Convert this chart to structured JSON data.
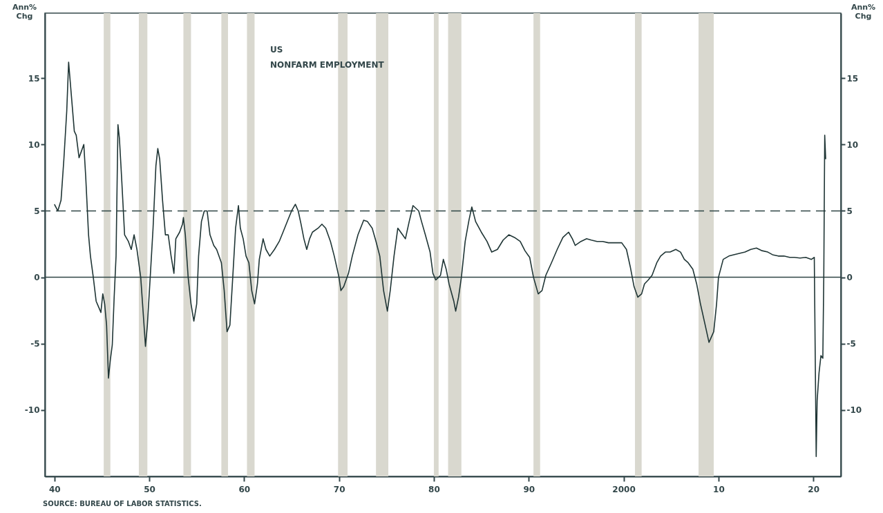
{
  "chart_data": {
    "type": "line",
    "ylabel": "Ann% Chg",
    "y2label": "Ann% Chg",
    "annotations": [
      "US\nNONFARM EMPLOYMENT",
      "SOURCE: BUREAU OF LABOR STATISTICS."
    ],
    "xlim": [
      1939,
      2022.9
    ],
    "xticks": [
      {
        "value": 1940,
        "label": "40"
      },
      {
        "value": 1950,
        "label": "50"
      },
      {
        "value": 1960,
        "label": "60"
      },
      {
        "value": 1970,
        "label": "70"
      },
      {
        "value": 1980,
        "label": "80"
      },
      {
        "value": 1990,
        "label": "90"
      },
      2000,
      {
        "value": 2010,
        "label": "10"
      },
      {
        "value": 2020,
        "label": "20"
      }
    ],
    "ylim": [
      -15,
      19.9
    ],
    "yticks": [
      -10,
      -5,
      0,
      5,
      10,
      15
    ],
    "y2lim": [
      -15,
      19.9
    ],
    "y2ticks": [
      -10,
      -5,
      0,
      5,
      10,
      15
    ],
    "grid": false,
    "marker": "none",
    "line_style": "solid",
    "ref_lines": [
      {
        "axis": "y",
        "value": 0,
        "color": "#2e4444",
        "line_style": "solid"
      },
      {
        "axis": "y",
        "value": 5,
        "color": "#2e4444",
        "line_style": "dashed"
      }
    ],
    "bands": [
      {
        "axis": "x",
        "from": 1945.2,
        "to": 1945.9,
        "color": "#d9d8cf"
      },
      {
        "axis": "x",
        "from": 1948.9,
        "to": 1949.8,
        "color": "#d9d8cf"
      },
      {
        "axis": "x",
        "from": 1953.6,
        "to": 1954.4,
        "color": "#d9d8cf"
      },
      {
        "axis": "x",
        "from": 1957.6,
        "to": 1958.3,
        "color": "#d9d8cf"
      },
      {
        "axis": "x",
        "from": 1960.3,
        "to": 1961.1,
        "color": "#d9d8cf"
      },
      {
        "axis": "x",
        "from": 1969.9,
        "to": 1970.9,
        "color": "#d9d8cf"
      },
      {
        "axis": "x",
        "from": 1973.9,
        "to": 1975.2,
        "color": "#d9d8cf"
      },
      {
        "axis": "x",
        "from": 1980.0,
        "to": 1980.5,
        "color": "#d9d8cf"
      },
      {
        "axis": "x",
        "from": 1981.5,
        "to": 1982.9,
        "color": "#d9d8cf"
      },
      {
        "axis": "x",
        "from": 1990.5,
        "to": 1991.2,
        "color": "#d9d8cf"
      },
      {
        "axis": "x",
        "from": 2001.2,
        "to": 2001.9,
        "color": "#d9d8cf"
      },
      {
        "axis": "x",
        "from": 2007.9,
        "to": 2009.5,
        "color": "#d9d8cf"
      }
    ],
    "series": [
      {
        "color": "#1f3535",
        "x": [
          1940,
          1940.36,
          1940.7,
          1941.0,
          1941.3,
          1941.5,
          1941.8,
          1942.1,
          1942.3,
          1942.6,
          1942.8,
          1943.1,
          1943.3,
          1943.6,
          1943.8,
          1944.1,
          1944.4,
          1944.7,
          1944.9,
          1945.1,
          1945.3,
          1945.5,
          1945.7,
          1945.9,
          1946.1,
          1946.3,
          1946.5,
          1946.7,
          1946.85,
          1947.0,
          1947.1,
          1947.4,
          1947.8,
          1948.1,
          1948.4,
          1948.7,
          1949.1,
          1949.4,
          1949.6,
          1949.8,
          1950.1,
          1950.4,
          1950.7,
          1950.9,
          1951.1,
          1951.4,
          1951.7,
          1952.0,
          1952.3,
          1952.6,
          1952.8,
          1953.2,
          1953.5,
          1953.6,
          1953.8,
          1954.1,
          1954.4,
          1954.7,
          1955.0,
          1955.2,
          1955.5,
          1955.8,
          1956.1,
          1956.4,
          1956.8,
          1957.1,
          1957.6,
          1957.9,
          1958.2,
          1958.5,
          1958.8,
          1959.1,
          1959.4,
          1959.6,
          1959.9,
          1960.2,
          1960.5,
          1960.8,
          1961.1,
          1961.4,
          1961.6,
          1962.0,
          1962.3,
          1962.7,
          1963.2,
          1963.7,
          1964.1,
          1964.6,
          1965.0,
          1965.4,
          1965.7,
          1966.0,
          1966.3,
          1966.6,
          1966.9,
          1967.2,
          1967.8,
          1968.2,
          1968.6,
          1969.1,
          1969.5,
          1970.0,
          1970.2,
          1970.5,
          1971.0,
          1971.4,
          1972.0,
          1972.6,
          1973.0,
          1973.5,
          1973.9,
          1974.3,
          1974.7,
          1975.1,
          1975.4,
          1975.8,
          1976.2,
          1976.7,
          1977.0,
          1977.4,
          1977.8,
          1978.4,
          1978.7,
          1979.1,
          1979.6,
          1979.9,
          1980.2,
          1980.5,
          1980.7,
          1981.0,
          1981.3,
          1981.6,
          1982.1,
          1982.3,
          1982.6,
          1982.9,
          1983.3,
          1983.7,
          1984.0,
          1984.4,
          1985.0,
          1985.6,
          1986.1,
          1986.7,
          1987.3,
          1987.9,
          1988.5,
          1989.1,
          1989.6,
          1990.1,
          1990.5,
          1991.0,
          1991.4,
          1991.8,
          1992.4,
          1993.0,
          1993.6,
          1994.2,
          1994.6,
          1994.9,
          1995.5,
          1996.1,
          1996.6,
          1997.2,
          1997.8,
          1998.4,
          1999.1,
          1999.8,
          2000.3,
          2000.7,
          2001.1,
          2001.5,
          2001.9,
          2002.2,
          2002.6,
          2003.0,
          2003.5,
          2003.9,
          2004.4,
          2004.9,
          2005.5,
          2006.0,
          2006.4,
          2006.8,
          2007.3,
          2007.7,
          2008.1,
          2008.6,
          2009.0,
          2009.5,
          2009.8,
          2010.0,
          2010.5,
          2011.1,
          2011.6,
          2012.2,
          2012.8,
          2013.4,
          2014.0,
          2014.6,
          2015.2,
          2015.7,
          2016.3,
          2016.9,
          2017.5,
          2018.0,
          2018.6,
          2019.2,
          2019.8,
          2020.1,
          2020.3,
          2020.4,
          2020.6,
          2020.8,
          2021.0,
          2021.1,
          2021.2,
          2021.3
        ],
        "values": [
          5.5,
          5.0,
          5.8,
          8.9,
          12.5,
          16.2,
          13.6,
          11.0,
          10.7,
          9.0,
          9.4,
          10.0,
          7.6,
          3.2,
          1.6,
          0,
          -1.8,
          -2.3,
          -2.65,
          -1.25,
          -2.0,
          -3.6,
          -7.6,
          -6.2,
          -5.1,
          -1.5,
          1.6,
          11.5,
          10.5,
          8.6,
          7.3,
          3.2,
          2.7,
          2.1,
          3.2,
          2.1,
          0,
          -3.1,
          -5.2,
          -3.6,
          0,
          3.7,
          8.4,
          9.7,
          8.9,
          5.8,
          3.2,
          3.2,
          1.6,
          0.3,
          2.9,
          3.4,
          4.0,
          4.5,
          3.2,
          0,
          -2.0,
          -3.3,
          -2.0,
          1.6,
          4.2,
          5.0,
          5.0,
          3.2,
          2.4,
          2.1,
          1.1,
          -1.0,
          -4.1,
          -3.6,
          0,
          3.7,
          5.4,
          3.7,
          2.9,
          1.6,
          1.1,
          -1.0,
          -2.0,
          -0.5,
          1.35,
          2.9,
          2.1,
          1.6,
          2.1,
          2.7,
          3.4,
          4.3,
          5.0,
          5.5,
          5.0,
          4.0,
          2.9,
          2.1,
          2.9,
          3.4,
          3.7,
          4.0,
          3.7,
          2.7,
          1.6,
          0,
          -1.0,
          -0.7,
          0.3,
          1.6,
          3.2,
          4.3,
          4.2,
          3.7,
          2.7,
          1.6,
          -1.0,
          -2.55,
          -1.0,
          1.6,
          3.7,
          3.2,
          2.9,
          4.2,
          5.4,
          5.0,
          4.2,
          3.2,
          1.9,
          0.3,
          -0.2,
          0,
          0.15,
          1.35,
          0.6,
          -0.5,
          -1.8,
          -2.55,
          -1.5,
          0,
          2.7,
          4.3,
          5.3,
          4.2,
          3.4,
          2.7,
          1.9,
          2.1,
          2.8,
          3.2,
          3.0,
          2.7,
          2.0,
          1.5,
          0,
          -1.25,
          -1.0,
          0.15,
          1.1,
          2.1,
          3.0,
          3.4,
          2.9,
          2.4,
          2.7,
          2.9,
          2.8,
          2.7,
          2.7,
          2.6,
          2.6,
          2.6,
          2.1,
          0.8,
          -0.7,
          -1.5,
          -1.25,
          -0.5,
          -0.2,
          0.15,
          1.1,
          1.6,
          1.9,
          1.9,
          2.1,
          1.9,
          1.35,
          1.1,
          0.6,
          -0.5,
          -2.0,
          -3.6,
          -4.9,
          -4.1,
          -2.0,
          0,
          1.35,
          1.6,
          1.7,
          1.8,
          1.9,
          2.1,
          2.2,
          2.0,
          1.9,
          1.7,
          1.6,
          1.6,
          1.5,
          1.5,
          1.45,
          1.5,
          1.35,
          1.5,
          -13.5,
          -9.3,
          -7.2,
          -5.9,
          -6.1,
          0,
          10.7,
          8.9
        ]
      }
    ]
  }
}
